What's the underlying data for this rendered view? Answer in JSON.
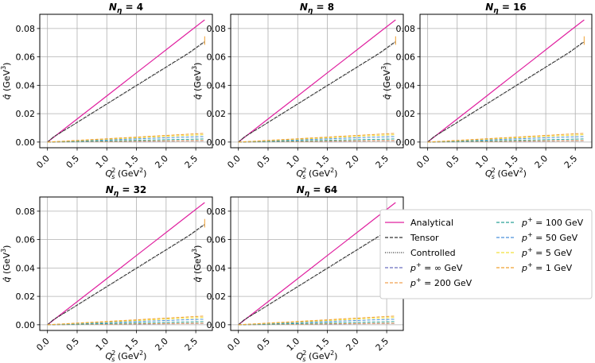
{
  "chart_data": {
    "type": "line",
    "x": [
      0.0,
      0.1,
      0.3,
      0.6,
      0.9,
      1.2,
      1.5,
      1.8,
      2.1,
      2.4,
      2.65
    ],
    "xlabel": "Q_s^2 (GeV^2)",
    "ylabel": "q̂ (GeV^3)",
    "xticks": [
      "0.0",
      "0.5",
      "1.0",
      "1.5",
      "2.0",
      "2.5"
    ],
    "yticks": [
      "0.00",
      "0.02",
      "0.04",
      "0.06",
      "0.08"
    ],
    "xlim": [
      -0.13,
      2.78
    ],
    "ylim": [
      -0.004,
      0.09
    ],
    "grid": true,
    "panels": [
      {
        "title_prefix": "N",
        "title_sub": "η",
        "title_value": "= 4"
      },
      {
        "title_prefix": "N",
        "title_sub": "η",
        "title_value": "= 8"
      },
      {
        "title_prefix": "N",
        "title_sub": "η",
        "title_value": "= 16"
      },
      {
        "title_prefix": "N",
        "title_sub": "η",
        "title_value": "= 32"
      },
      {
        "title_prefix": "N",
        "title_sub": "η",
        "title_value": "= 64"
      }
    ],
    "series": [
      {
        "name": "Analytical",
        "color": "#e0209f",
        "style": "solid",
        "values": [
          0.0,
          0.00325,
          0.00975,
          0.0195,
          0.02925,
          0.039,
          0.04875,
          0.0585,
          0.06825,
          0.078,
          0.0861
        ]
      },
      {
        "name": "Tensor",
        "color": "#333333",
        "style": "dashed",
        "values": [
          0.0,
          0.0036,
          0.0087,
          0.0165,
          0.0243,
          0.0321,
          0.0399,
          0.0477,
          0.0555,
          0.0633,
          0.0709
        ]
      },
      {
        "name": "Controlled",
        "color": "#333333",
        "style": "dotted",
        "values": [
          0.0,
          0.0035,
          0.0086,
          0.0163,
          0.0241,
          0.0319,
          0.0396,
          0.0474,
          0.0552,
          0.063,
          0.0705
        ]
      },
      {
        "name": "∞",
        "color": "#6a6fbf",
        "style": "dashed",
        "values": [
          0.0,
          3e-05,
          0.0001,
          0.0002,
          0.0003,
          0.0004,
          0.0005,
          0.0006,
          0.0007,
          0.0008,
          0.0009
        ]
      },
      {
        "name": "200",
        "color": "#f0a050",
        "style": "dashed",
        "values": [
          0.0,
          4e-05,
          0.00013,
          0.00026,
          0.00038,
          0.0005,
          0.00063,
          0.00076,
          0.00088,
          0.001,
          0.0011
        ]
      },
      {
        "name": "100",
        "color": "#2aa198",
        "style": "dashed",
        "values": [
          0.0,
          8e-05,
          0.00025,
          0.0005,
          0.00075,
          0.001,
          0.00125,
          0.0015,
          0.00175,
          0.002,
          0.0022
        ]
      },
      {
        "name": "50",
        "color": "#4a90d9",
        "style": "dashed",
        "values": [
          0.0,
          0.00015,
          0.00045,
          0.0009,
          0.00135,
          0.0018,
          0.00225,
          0.0027,
          0.00315,
          0.0036,
          0.0039
        ]
      },
      {
        "name": "5",
        "color": "#f2e03a",
        "style": "dashed",
        "values": [
          0.0,
          0.0002,
          0.0006,
          0.0012,
          0.0018,
          0.0024,
          0.003,
          0.0036,
          0.0042,
          0.0048,
          0.0052
        ]
      },
      {
        "name": "1",
        "color": "#f0a030",
        "style": "dashed",
        "values": [
          0.0,
          0.00023,
          0.0007,
          0.0014,
          0.0021,
          0.0028,
          0.0035,
          0.0042,
          0.0049,
          0.0056,
          0.0061
        ]
      }
    ],
    "legend": {
      "position": "lower-right",
      "entries": [
        {
          "label": "Analytical"
        },
        {
          "label": "Tensor"
        },
        {
          "label": "Controlled"
        },
        {
          "prefix": "p",
          "sup": "+",
          "value": " = ∞ GeV"
        },
        {
          "prefix": "p",
          "sup": "+",
          "value": " = 200 GeV"
        },
        {
          "prefix": "p",
          "sup": "+",
          "value": " = 100 GeV"
        },
        {
          "prefix": "p",
          "sup": "+",
          "value": " = 50 GeV"
        },
        {
          "prefix": "p",
          "sup": "+",
          "value": " = 5 GeV"
        },
        {
          "prefix": "p",
          "sup": "+",
          "value": " = 1 GeV"
        }
      ]
    }
  }
}
